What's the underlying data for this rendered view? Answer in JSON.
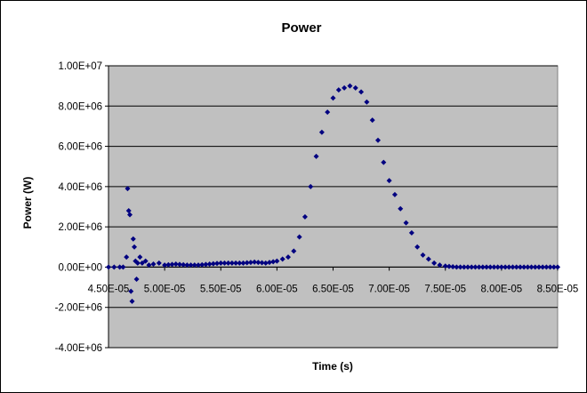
{
  "chart_data": {
    "type": "scatter",
    "title": "Power",
    "xlabel": "Time (s)",
    "ylabel": "Power (W)",
    "xlim": [
      4.5e-05,
      8.5e-05
    ],
    "ylim": [
      -4000000,
      10000000
    ],
    "x_ticks": [
      {
        "value": 4.5e-05,
        "label": "4.50E-05"
      },
      {
        "value": 5e-05,
        "label": "5.00E-05"
      },
      {
        "value": 5.5e-05,
        "label": "5.50E-05"
      },
      {
        "value": 6e-05,
        "label": "6.00E-05"
      },
      {
        "value": 6.5e-05,
        "label": "6.50E-05"
      },
      {
        "value": 7e-05,
        "label": "7.00E-05"
      },
      {
        "value": 7.5e-05,
        "label": "7.50E-05"
      },
      {
        "value": 8e-05,
        "label": "8.00E-05"
      },
      {
        "value": 8.5e-05,
        "label": "8.50E-05"
      }
    ],
    "y_ticks": [
      {
        "value": 10000000,
        "label": "1.00E+07"
      },
      {
        "value": 8000000,
        "label": "8.00E+06"
      },
      {
        "value": 6000000,
        "label": "6.00E+06"
      },
      {
        "value": 4000000,
        "label": "4.00E+06"
      },
      {
        "value": 2000000,
        "label": "2.00E+06"
      },
      {
        "value": 0,
        "label": "0.00E+00"
      },
      {
        "value": -2000000,
        "label": "-2.00E+06"
      },
      {
        "value": -4000000,
        "label": "-4.00E+06"
      }
    ],
    "grid": "horizontal",
    "legend": "none",
    "colors": {
      "plot_background": "#c0c0c0",
      "marker": "#000080",
      "gridline": "#000000"
    },
    "series": [
      {
        "x": [
          4.5e-05,
          4.55e-05,
          4.6e-05,
          4.63e-05,
          4.66e-05,
          4.67e-05,
          4.68e-05,
          4.69e-05,
          4.7e-05,
          4.71e-05,
          4.72e-05,
          4.73e-05,
          4.74e-05,
          4.75e-05,
          4.76e-05,
          4.78e-05,
          4.8e-05,
          4.83e-05,
          4.86e-05,
          4.9e-05,
          4.95e-05,
          5e-05,
          5.1e-05,
          5.2e-05,
          5.3e-05,
          5.4e-05,
          5.5e-05,
          5.6e-05,
          5.7e-05,
          5.8e-05,
          5.9e-05,
          6e-05,
          6.05e-05,
          6.1e-05,
          6.15e-05,
          6.2e-05,
          6.25e-05,
          6.3e-05,
          6.35e-05,
          6.4e-05,
          6.45e-05,
          6.5e-05,
          6.55e-05,
          6.6e-05,
          6.65e-05,
          6.7e-05,
          6.75e-05,
          6.8e-05,
          6.85e-05,
          6.9e-05,
          6.95e-05,
          7e-05,
          7.05e-05,
          7.1e-05,
          7.15e-05,
          7.2e-05,
          7.25e-05,
          7.3e-05,
          7.35e-05,
          7.4e-05,
          7.45e-05,
          7.5e-05,
          7.6e-05,
          7.7e-05,
          7.8e-05,
          7.9e-05,
          8e-05,
          8.1e-05,
          8.2e-05,
          8.3e-05,
          8.4e-05,
          8.5e-05
        ],
        "y": [
          0,
          0,
          0,
          0,
          500000,
          3900000,
          2800000,
          2600000,
          -1200000,
          -1700000,
          1400000,
          1000000,
          300000,
          -600000,
          200000,
          500000,
          200000,
          300000,
          100000,
          150000,
          200000,
          100000,
          150000,
          100000,
          100000,
          150000,
          200000,
          200000,
          200000,
          250000,
          200000,
          300000,
          400000,
          500000,
          800000,
          1500000,
          2500000,
          4000000,
          5500000,
          6700000,
          7700000,
          8400000,
          8800000,
          8900000,
          9000000,
          8900000,
          8700000,
          8200000,
          7300000,
          6300000,
          5200000,
          4300000,
          3600000,
          2900000,
          2200000,
          1700000,
          1000000,
          600000,
          400000,
          200000,
          100000,
          50000,
          0,
          0,
          0,
          0,
          0,
          0,
          0,
          0,
          0,
          0
        ]
      }
    ]
  }
}
